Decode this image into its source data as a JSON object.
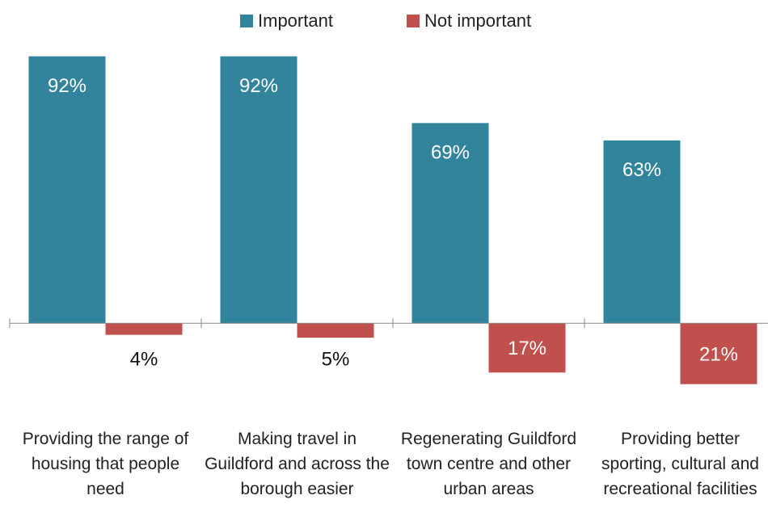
{
  "chart_data": {
    "type": "bar",
    "categories": [
      "Providing the range of housing that people need",
      "Making travel in Guildford and across the borough easier",
      "Regenerating Guildford town centre and other urban areas",
      "Providing better sporting, cultural and recreational facilities"
    ],
    "series": [
      {
        "name": "Important",
        "color": "#31849b",
        "values": [
          92,
          92,
          69,
          63
        ],
        "value_labels": [
          "92%",
          "92%",
          "69%",
          "63%"
        ]
      },
      {
        "name": "Not important",
        "color": "#c0504d",
        "values": [
          -4,
          -5,
          -17,
          -21
        ],
        "value_labels": [
          "4%",
          "5%",
          "17%",
          "21%"
        ]
      }
    ],
    "ylim": [
      -25,
      100
    ],
    "legend": "top"
  }
}
